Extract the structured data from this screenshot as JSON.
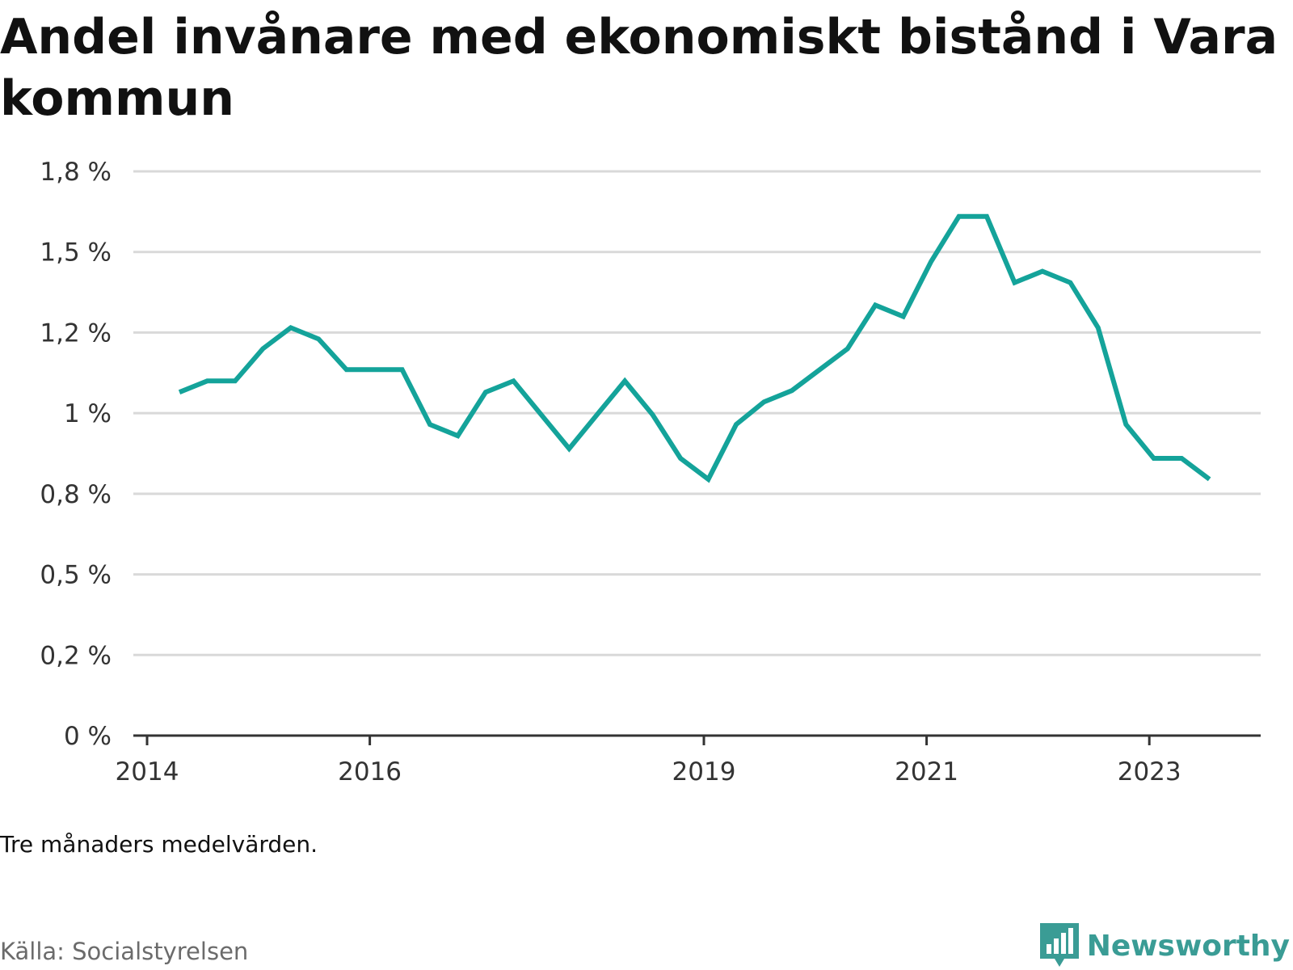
{
  "title": "Andel invånare med ekonomiskt bistånd i Vara kommun",
  "note": "Tre månaders medelvärden.",
  "source": "Källa: Socialstyrelsen",
  "brand": {
    "name": "Newsworthy",
    "icon": "newsworthy-logo-icon",
    "color": "#3a9c95"
  },
  "colors": {
    "line": "#14a39a",
    "grid": "#d9d9d9",
    "axis": "#333333"
  },
  "chart_data": {
    "type": "line",
    "title": "Andel invånare med ekonomiskt bistånd i Vara kommun",
    "xlabel": "",
    "ylabel": "",
    "xlim": [
      2014.0,
      2024.0
    ],
    "ylim": [
      0,
      1.75
    ],
    "x_ticks": [
      {
        "value": 2014.0,
        "label": "2014"
      },
      {
        "value": 2016.0,
        "label": "2016"
      },
      {
        "value": 2019.0,
        "label": "2019"
      },
      {
        "value": 2021.0,
        "label": "2021"
      },
      {
        "value": 2023.0,
        "label": "2023"
      }
    ],
    "y_ticks": [
      {
        "value": 0,
        "label": "0 %"
      },
      {
        "value": 0.25,
        "label": "0,2 %"
      },
      {
        "value": 0.5,
        "label": "0,5 %"
      },
      {
        "value": 0.75,
        "label": "0,8 %"
      },
      {
        "value": 1.0,
        "label": "1 %"
      },
      {
        "value": 1.25,
        "label": "1,2 %"
      },
      {
        "value": 1.5,
        "label": "1,5 %"
      },
      {
        "value": 1.75,
        "label": "1,8 %"
      }
    ],
    "grid": true,
    "series": [
      {
        "name": "",
        "color": "#14a39a",
        "x": [
          2014.29,
          2014.54,
          2014.79,
          2015.04,
          2015.29,
          2015.54,
          2015.79,
          2016.04,
          2016.29,
          2016.54,
          2016.79,
          2017.04,
          2017.29,
          2017.54,
          2017.79,
          2018.04,
          2018.29,
          2018.54,
          2018.79,
          2019.04,
          2019.29,
          2019.54,
          2019.79,
          2020.04,
          2020.29,
          2020.54,
          2020.79,
          2021.04,
          2021.29,
          2021.54,
          2021.79,
          2022.04,
          2022.29,
          2022.54,
          2022.79,
          2023.04,
          2023.29,
          2023.54
        ],
        "y": [
          1.065,
          1.1,
          1.1,
          1.2,
          1.265,
          1.23,
          1.135,
          1.135,
          1.135,
          0.965,
          0.93,
          1.065,
          1.1,
          0.995,
          0.89,
          0.995,
          1.1,
          0.995,
          0.86,
          0.795,
          0.965,
          1.035,
          1.07,
          1.135,
          1.2,
          1.335,
          1.3,
          1.47,
          1.61,
          1.61,
          1.405,
          1.44,
          1.405,
          1.265,
          0.965,
          0.86,
          0.86,
          0.795
        ]
      }
    ]
  }
}
